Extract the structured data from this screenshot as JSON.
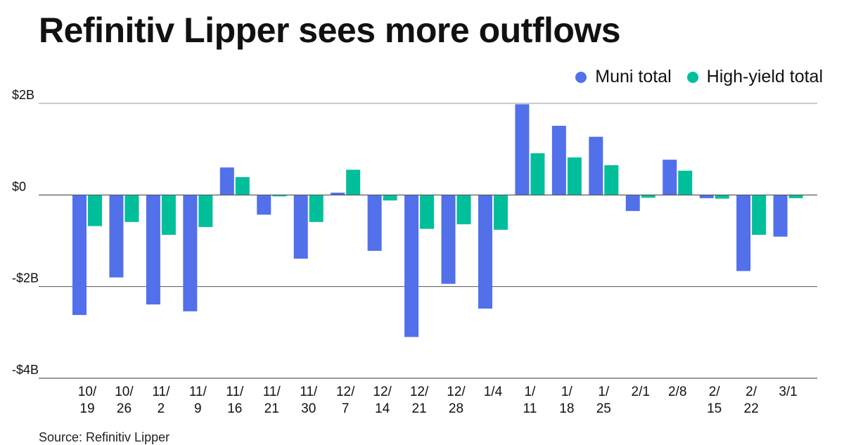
{
  "chart_data": {
    "type": "bar",
    "title": "Refinitiv Lipper sees more outflows",
    "xlabel": "",
    "ylabel": "",
    "ylim": [
      -4,
      2
    ],
    "unit": "$B",
    "grid": true,
    "legend_position": "top-right",
    "yticks": [
      {
        "value": 2,
        "label": "$2B"
      },
      {
        "value": 0,
        "label": "$0"
      },
      {
        "value": -2,
        "label": "-$2B"
      },
      {
        "value": -4,
        "label": "-$4B"
      }
    ],
    "categories": [
      "10/19",
      "10/26",
      "11/2",
      "11/9",
      "11/16",
      "11/21",
      "11/30",
      "12/7",
      "12/14",
      "12/21",
      "12/28",
      "1/4",
      "1/11",
      "1/18",
      "1/25",
      "2/1",
      "2/8",
      "2/15",
      "2/22",
      "3/1"
    ],
    "category_labels": [
      [
        "10/",
        "19"
      ],
      [
        "10/",
        "26"
      ],
      [
        "11/",
        "2"
      ],
      [
        "11/",
        "9"
      ],
      [
        "11/",
        "16"
      ],
      [
        "11/",
        "21"
      ],
      [
        "11/",
        "30"
      ],
      [
        "12/",
        "7"
      ],
      [
        "12/",
        "14"
      ],
      [
        "12/",
        "21"
      ],
      [
        "12/",
        "28"
      ],
      [
        "1/4"
      ],
      [
        "1/",
        "11"
      ],
      [
        "1/",
        "18"
      ],
      [
        "1/",
        "25"
      ],
      [
        "2/1"
      ],
      [
        "2/8"
      ],
      [
        "2/",
        "15"
      ],
      [
        "2/",
        "22"
      ],
      [
        "3/1"
      ]
    ],
    "series": [
      {
        "name": "Muni total",
        "color": "#5170ea",
        "values": [
          -2.62,
          -1.8,
          -2.39,
          -2.54,
          0.6,
          -0.43,
          -1.39,
          0.05,
          -1.22,
          -3.1,
          -1.94,
          -2.48,
          1.98,
          1.51,
          1.27,
          -0.35,
          0.77,
          -0.07,
          -1.66,
          -0.91
        ]
      },
      {
        "name": "High-yield total",
        "color": "#00bf9a",
        "values": [
          -0.68,
          -0.59,
          -0.87,
          -0.7,
          0.39,
          -0.03,
          -0.59,
          0.55,
          -0.12,
          -0.74,
          -0.64,
          -0.76,
          0.91,
          0.82,
          0.65,
          -0.06,
          0.53,
          -0.08,
          -0.87,
          -0.07
        ]
      }
    ],
    "source": "Source: Refinitiv Lipper"
  }
}
